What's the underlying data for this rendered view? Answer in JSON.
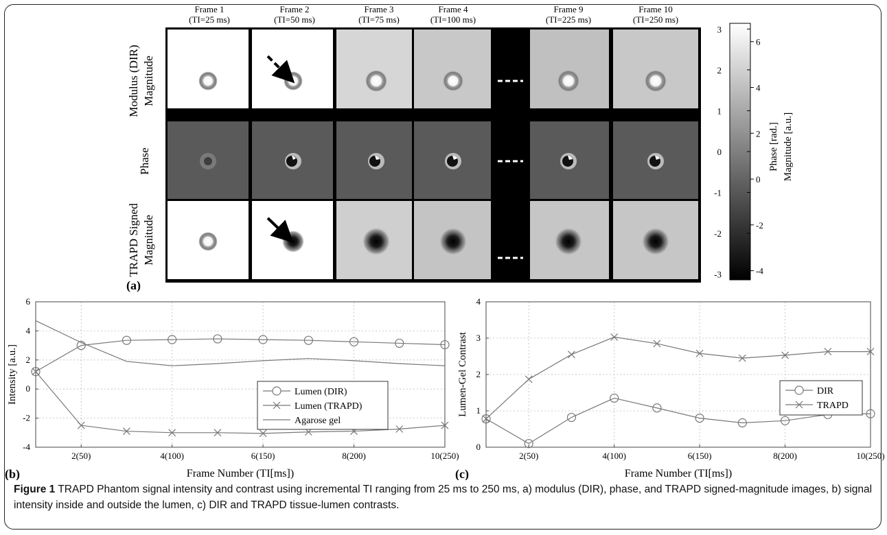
{
  "panel_a": {
    "label": "(a)",
    "frames": [
      {
        "title": "Frame 1",
        "ti": "(TI=25 ms)"
      },
      {
        "title": "Frame 2",
        "ti": "(TI=50 ms)"
      },
      {
        "title": "Frame 3",
        "ti": "(TI=75 ms)"
      },
      {
        "title": "Frame 4",
        "ti": "(TI=100 ms)"
      },
      {
        "title": "Frame 9",
        "ti": "(TI=225 ms)"
      },
      {
        "title": "Frame 10",
        "ti": "(TI=250 ms)"
      }
    ],
    "rows": [
      {
        "line1": "Modulus (DIR)",
        "line2": "Magnitude"
      },
      {
        "line1": "Phase",
        "line2": ""
      },
      {
        "line1": "TRAPD Signed",
        "line2": "Magnitude"
      }
    ],
    "colorbar": {
      "phase_label": "Phase [rad.]",
      "magnitude_label": "Magnitude [a.u.]",
      "phase_ticks": [
        "3",
        "2",
        "1",
        "0",
        "-1",
        "-2",
        "-3"
      ],
      "magnitude_ticks": [
        "6",
        "4",
        "2",
        "0",
        "-2",
        "-4"
      ]
    }
  },
  "chart_data": [
    {
      "type": "line",
      "label": "(b)",
      "xlabel": "Frame Number (TI[ms])",
      "ylabel": "Intensity [a.u.]",
      "x": [
        1,
        2,
        3,
        4,
        5,
        6,
        7,
        8,
        9,
        10
      ],
      "xticks": [
        2,
        4,
        6,
        8,
        10
      ],
      "xticklabels": [
        "2(50)",
        "4(100)",
        "6(150)",
        "8(200)",
        "10(250)"
      ],
      "xlim": [
        1,
        10
      ],
      "ylim": [
        -4,
        6
      ],
      "yticks": [
        -4,
        -2,
        0,
        2,
        4,
        6
      ],
      "grid": true,
      "legend_position": "center-right",
      "series": [
        {
          "name": "Lumen (DIR)",
          "marker": "circle",
          "values": [
            1.2,
            3.0,
            3.35,
            3.4,
            3.45,
            3.4,
            3.35,
            3.25,
            3.15,
            3.05
          ]
        },
        {
          "name": "Lumen (TRAPD)",
          "marker": "x",
          "values": [
            1.2,
            -2.5,
            -2.9,
            -3.0,
            -3.0,
            -3.05,
            -2.95,
            -2.9,
            -2.75,
            -2.5
          ]
        },
        {
          "name": "Agarose gel",
          "marker": "none",
          "values": [
            4.7,
            3.2,
            1.9,
            1.6,
            1.75,
            1.95,
            2.1,
            1.95,
            1.75,
            1.6
          ]
        }
      ]
    },
    {
      "type": "line",
      "label": "(c)",
      "xlabel": "Frame Number (TI[ms])",
      "ylabel": "Lumen-Gel Contrast",
      "x": [
        1,
        2,
        3,
        4,
        5,
        6,
        7,
        8,
        9,
        10
      ],
      "xticks": [
        2,
        4,
        6,
        8,
        10
      ],
      "xticklabels": [
        "2(50)",
        "4(100)",
        "6(150)",
        "8(200)",
        "10(250)"
      ],
      "xlim": [
        1,
        10
      ],
      "ylim": [
        0,
        4
      ],
      "yticks": [
        0,
        1,
        2,
        3,
        4
      ],
      "grid": true,
      "legend_position": "center-right",
      "series": [
        {
          "name": "DIR",
          "marker": "circle",
          "values": [
            0.78,
            0.1,
            0.82,
            1.35,
            1.08,
            0.8,
            0.67,
            0.73,
            0.9,
            0.92
          ]
        },
        {
          "name": "TRAPD",
          "marker": "x",
          "values": [
            0.78,
            1.87,
            2.55,
            3.03,
            2.85,
            2.58,
            2.45,
            2.53,
            2.63,
            2.63
          ]
        }
      ]
    }
  ],
  "caption": {
    "bold": "Figure 1",
    "text": " TRAPD Phantom signal intensity and contrast using incremental TI ranging from 25 ms to 250 ms, a) modulus (DIR), phase, and TRAPD signed-magnitude images, b) signal intensity inside and outside the lumen, c) DIR and TRAPD tissue-lumen contrasts."
  }
}
